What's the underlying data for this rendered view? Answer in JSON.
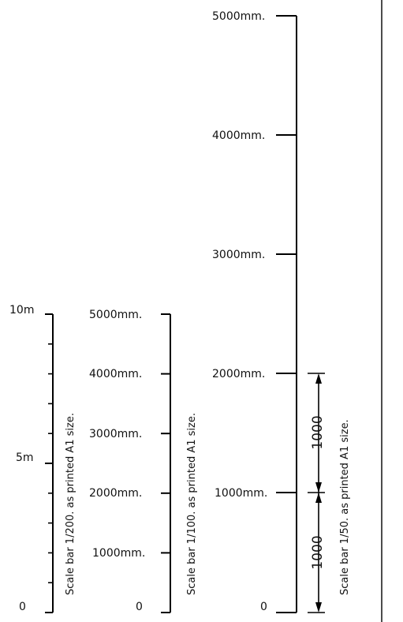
{
  "scale_bars": [
    {
      "caption": "Scale bar 1/200. as printed A1 size.",
      "labels": {
        "top": "10m",
        "mid": "5m",
        "bottom": "0"
      }
    },
    {
      "caption": "Scale bar 1/100. as printed A1 size.",
      "labels": [
        "5000mm.",
        "4000mm.",
        "3000mm.",
        "2000mm.",
        "1000mm.",
        "0"
      ]
    },
    {
      "caption": "Scale bar 1/50. as printed A1 size.",
      "labels": [
        "5000mm.",
        "4000mm.",
        "3000mm.",
        "2000mm.",
        "1000mm.",
        "0"
      ],
      "dimensions": [
        "1000",
        "1000"
      ]
    }
  ]
}
